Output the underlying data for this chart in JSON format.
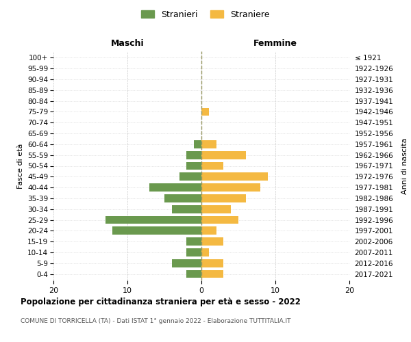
{
  "age_groups": [
    "0-4",
    "5-9",
    "10-14",
    "15-19",
    "20-24",
    "25-29",
    "30-34",
    "35-39",
    "40-44",
    "45-49",
    "50-54",
    "55-59",
    "60-64",
    "65-69",
    "70-74",
    "75-79",
    "80-84",
    "85-89",
    "90-94",
    "95-99",
    "100+"
  ],
  "birth_years": [
    "2017-2021",
    "2012-2016",
    "2007-2011",
    "2002-2006",
    "1997-2001",
    "1992-1996",
    "1987-1991",
    "1982-1986",
    "1977-1981",
    "1972-1976",
    "1967-1971",
    "1962-1966",
    "1957-1961",
    "1952-1956",
    "1947-1951",
    "1942-1946",
    "1937-1941",
    "1932-1936",
    "1927-1931",
    "1922-1926",
    "≤ 1921"
  ],
  "males": [
    2,
    4,
    2,
    2,
    12,
    13,
    4,
    5,
    7,
    3,
    2,
    2,
    1,
    0,
    0,
    0,
    0,
    0,
    0,
    0,
    0
  ],
  "females": [
    3,
    3,
    1,
    3,
    2,
    5,
    4,
    6,
    8,
    9,
    3,
    6,
    2,
    0,
    0,
    1,
    0,
    0,
    0,
    0,
    0
  ],
  "male_color": "#6a994e",
  "female_color": "#f4b942",
  "male_label": "Stranieri",
  "female_label": "Straniere",
  "title": "Popolazione per cittadinanza straniera per età e sesso - 2022",
  "subtitle": "COMUNE DI TORRICELLA (TA) - Dati ISTAT 1° gennaio 2022 - Elaborazione TUTTITALIA.IT",
  "xlabel_left": "Maschi",
  "xlabel_right": "Femmine",
  "ylabel_left": "Fasce di età",
  "ylabel_right": "Anni di nascita",
  "xlim": 20,
  "background_color": "#ffffff",
  "grid_color": "#cccccc",
  "center_line_color": "#999966"
}
